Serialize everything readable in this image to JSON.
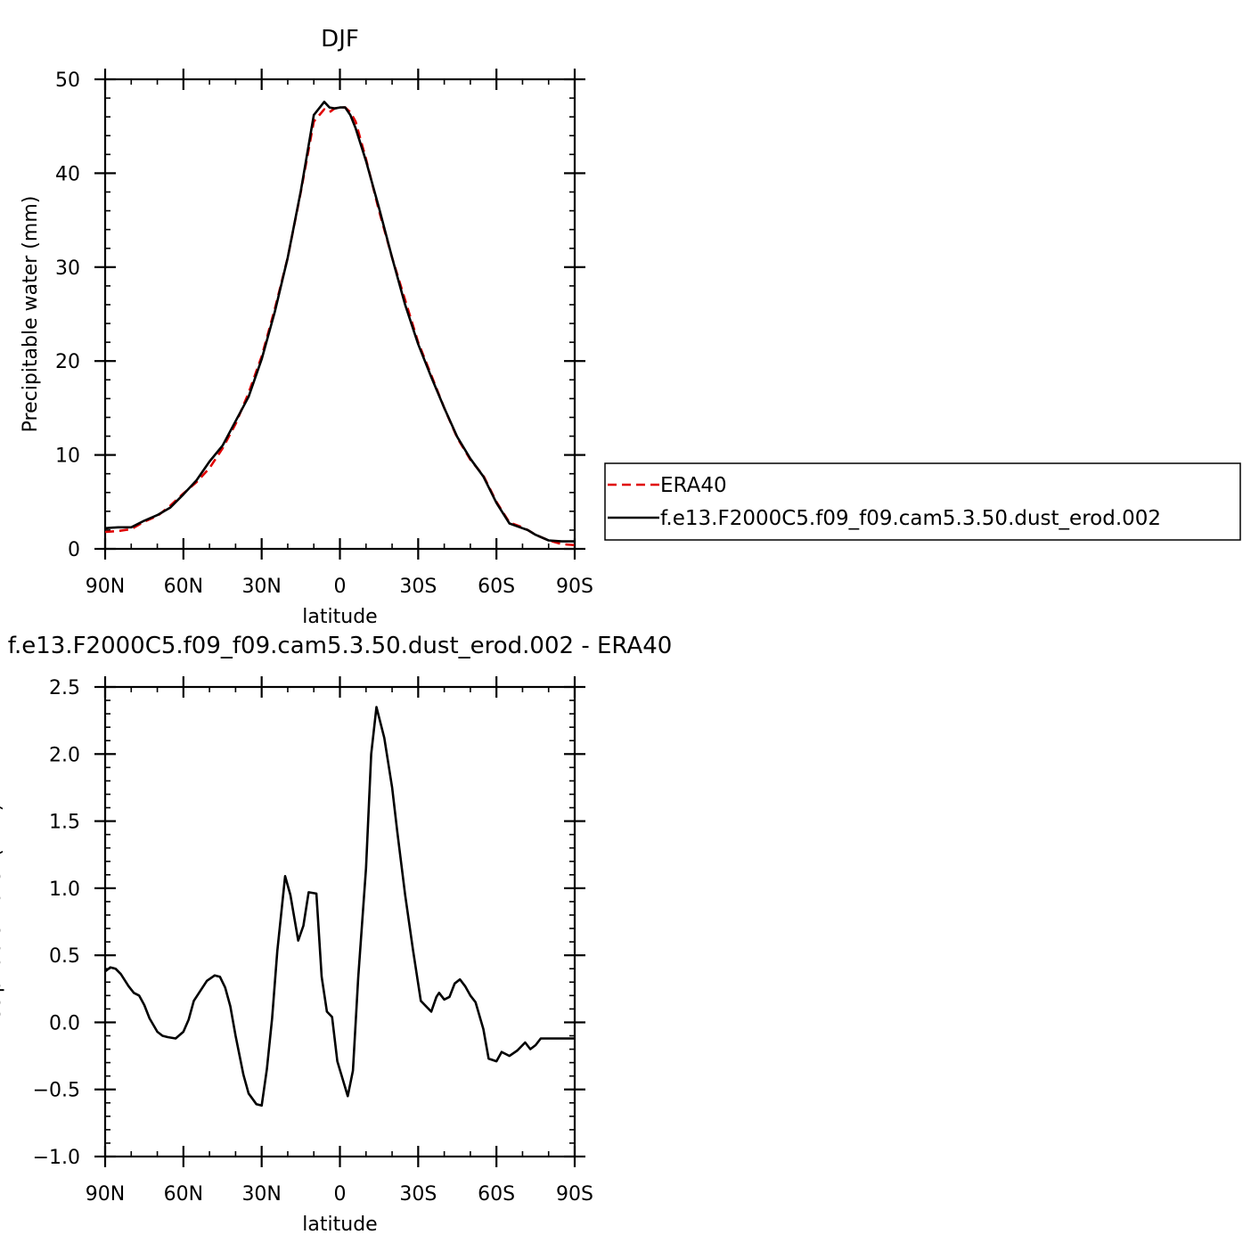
{
  "chart_data": [
    {
      "type": "line",
      "title": "DJF",
      "xlabel": "latitude",
      "ylabel": "Precipitable water (mm)",
      "xlim": [
        90,
        -90
      ],
      "ylim": [
        0,
        50
      ],
      "xticks": [
        90,
        60,
        30,
        0,
        -30,
        -60,
        -90
      ],
      "xtick_labels": [
        "90N",
        "60N",
        "30N",
        "0",
        "30S",
        "60S",
        "90S"
      ],
      "yticks": [
        0,
        10,
        20,
        30,
        40,
        50
      ],
      "ytick_labels": [
        "0",
        "10",
        "20",
        "30",
        "40",
        "50"
      ],
      "legend": "right",
      "series": [
        {
          "name": "ERA40",
          "color": "#e00000",
          "dash": "dashed",
          "x": [
            90,
            85,
            80,
            75,
            70,
            65,
            60,
            55,
            50,
            45,
            40,
            35,
            30,
            25,
            20,
            15,
            10,
            6,
            4,
            2,
            0,
            -2,
            -4,
            -6,
            -10,
            -15,
            -20,
            -25,
            -30,
            -35,
            -40,
            -45,
            -50,
            -55,
            -60,
            -65,
            -70,
            -72,
            -75,
            -80,
            -85,
            -90
          ],
          "y": [
            1.8,
            1.9,
            2.1,
            2.9,
            3.5,
            4.6,
            5.9,
            7.1,
            8.6,
            10.7,
            13.3,
            16.6,
            20.5,
            25.5,
            31.0,
            38.0,
            45.5,
            46.8,
            46.5,
            46.9,
            47.0,
            47.0,
            46.5,
            45.5,
            41.5,
            36.0,
            31.0,
            26.5,
            22.0,
            18.5,
            15.0,
            11.8,
            9.5,
            7.8,
            5.0,
            2.8,
            2.3,
            2.0,
            1.5,
            0.9,
            0.5,
            0.4
          ]
        },
        {
          "name": "f.e13.F2000C5.f09_f09.cam5.3.50.dust_erod.002",
          "color": "#000000",
          "dash": "solid",
          "x": [
            90,
            85,
            80,
            75,
            70,
            65,
            60,
            55,
            50,
            45,
            40,
            35,
            30,
            25,
            20,
            15,
            10,
            6,
            4,
            2,
            0,
            -2,
            -4,
            -6,
            -10,
            -15,
            -20,
            -25,
            -30,
            -35,
            -40,
            -45,
            -50,
            -55,
            -60,
            -65,
            -70,
            -72,
            -75,
            -80,
            -85,
            -90
          ],
          "y": [
            2.2,
            2.3,
            2.3,
            3.0,
            3.6,
            4.4,
            5.8,
            7.3,
            9.3,
            11.0,
            13.6,
            16.2,
            20.2,
            25.2,
            31.0,
            38.1,
            46.2,
            47.6,
            47.0,
            46.9,
            47.0,
            47.0,
            46.2,
            44.8,
            41.3,
            36.3,
            31.0,
            26.0,
            21.8,
            18.3,
            15.0,
            11.9,
            9.6,
            7.7,
            4.9,
            2.7,
            2.2,
            2.0,
            1.5,
            0.9,
            0.8,
            0.8
          ]
        }
      ]
    },
    {
      "type": "line",
      "title": "f.e13.F2000C5.f09_f09.cam5.3.50.dust_erod.002 - ERA40",
      "xlabel": "latitude",
      "ylabel": "Precipitable water (mm)",
      "xlim": [
        90,
        -90
      ],
      "ylim": [
        -1.0,
        2.5
      ],
      "xticks": [
        90,
        60,
        30,
        0,
        -30,
        -60,
        -90
      ],
      "xtick_labels": [
        "90N",
        "60N",
        "30N",
        "0",
        "30S",
        "60S",
        "90S"
      ],
      "yticks": [
        -1.0,
        -0.5,
        0.0,
        0.5,
        1.0,
        1.5,
        2.0,
        2.5
      ],
      "ytick_labels": [
        "−1.0",
        "−0.5",
        "0.0",
        "0.5",
        "1.0",
        "1.5",
        "2.0",
        "2.5"
      ],
      "series": [
        {
          "color": "#000000",
          "dash": "solid",
          "x": [
            90,
            88,
            86,
            84,
            81,
            79,
            77,
            75,
            73,
            70,
            68,
            66,
            63,
            60,
            58,
            56,
            53,
            51,
            48,
            46,
            44,
            42,
            40,
            37,
            35,
            32,
            30,
            28,
            26,
            24,
            21,
            19,
            16,
            14,
            12,
            9,
            7,
            5,
            3,
            1,
            -3,
            -5,
            -7,
            -10,
            -12,
            -14,
            -17,
            -20,
            -22,
            -25,
            -28,
            -31,
            -35,
            -37,
            -38,
            -40,
            -42,
            -44,
            -46,
            -48,
            -50,
            -52,
            -55,
            -57,
            -60,
            -62,
            -65,
            -68,
            -71,
            -73,
            -75,
            -77,
            -79,
            -82,
            -84,
            -86,
            -89,
            -90
          ],
          "y": [
            0.38,
            0.41,
            0.4,
            0.36,
            0.27,
            0.22,
            0.2,
            0.13,
            0.03,
            -0.07,
            -0.1,
            -0.11,
            -0.12,
            -0.07,
            0.02,
            0.16,
            0.25,
            0.31,
            0.35,
            0.34,
            0.26,
            0.12,
            -0.1,
            -0.39,
            -0.53,
            -0.61,
            -0.62,
            -0.35,
            0.03,
            0.53,
            1.09,
            0.95,
            0.61,
            0.72,
            0.97,
            0.96,
            0.34,
            0.08,
            0.04,
            -0.29,
            -0.55,
            -0.36,
            0.33,
            1.15,
            2.0,
            2.35,
            2.12,
            1.75,
            1.42,
            0.95,
            0.54,
            0.16,
            0.08,
            0.19,
            0.22,
            0.17,
            0.19,
            0.29,
            0.32,
            0.27,
            0.2,
            0.15,
            -0.05,
            -0.27,
            -0.29,
            -0.22,
            -0.25,
            -0.21,
            -0.15,
            -0.2,
            -0.17,
            -0.12,
            -0.12,
            -0.12,
            -0.12,
            -0.12,
            -0.12,
            -0.12
          ]
        }
      ]
    }
  ]
}
